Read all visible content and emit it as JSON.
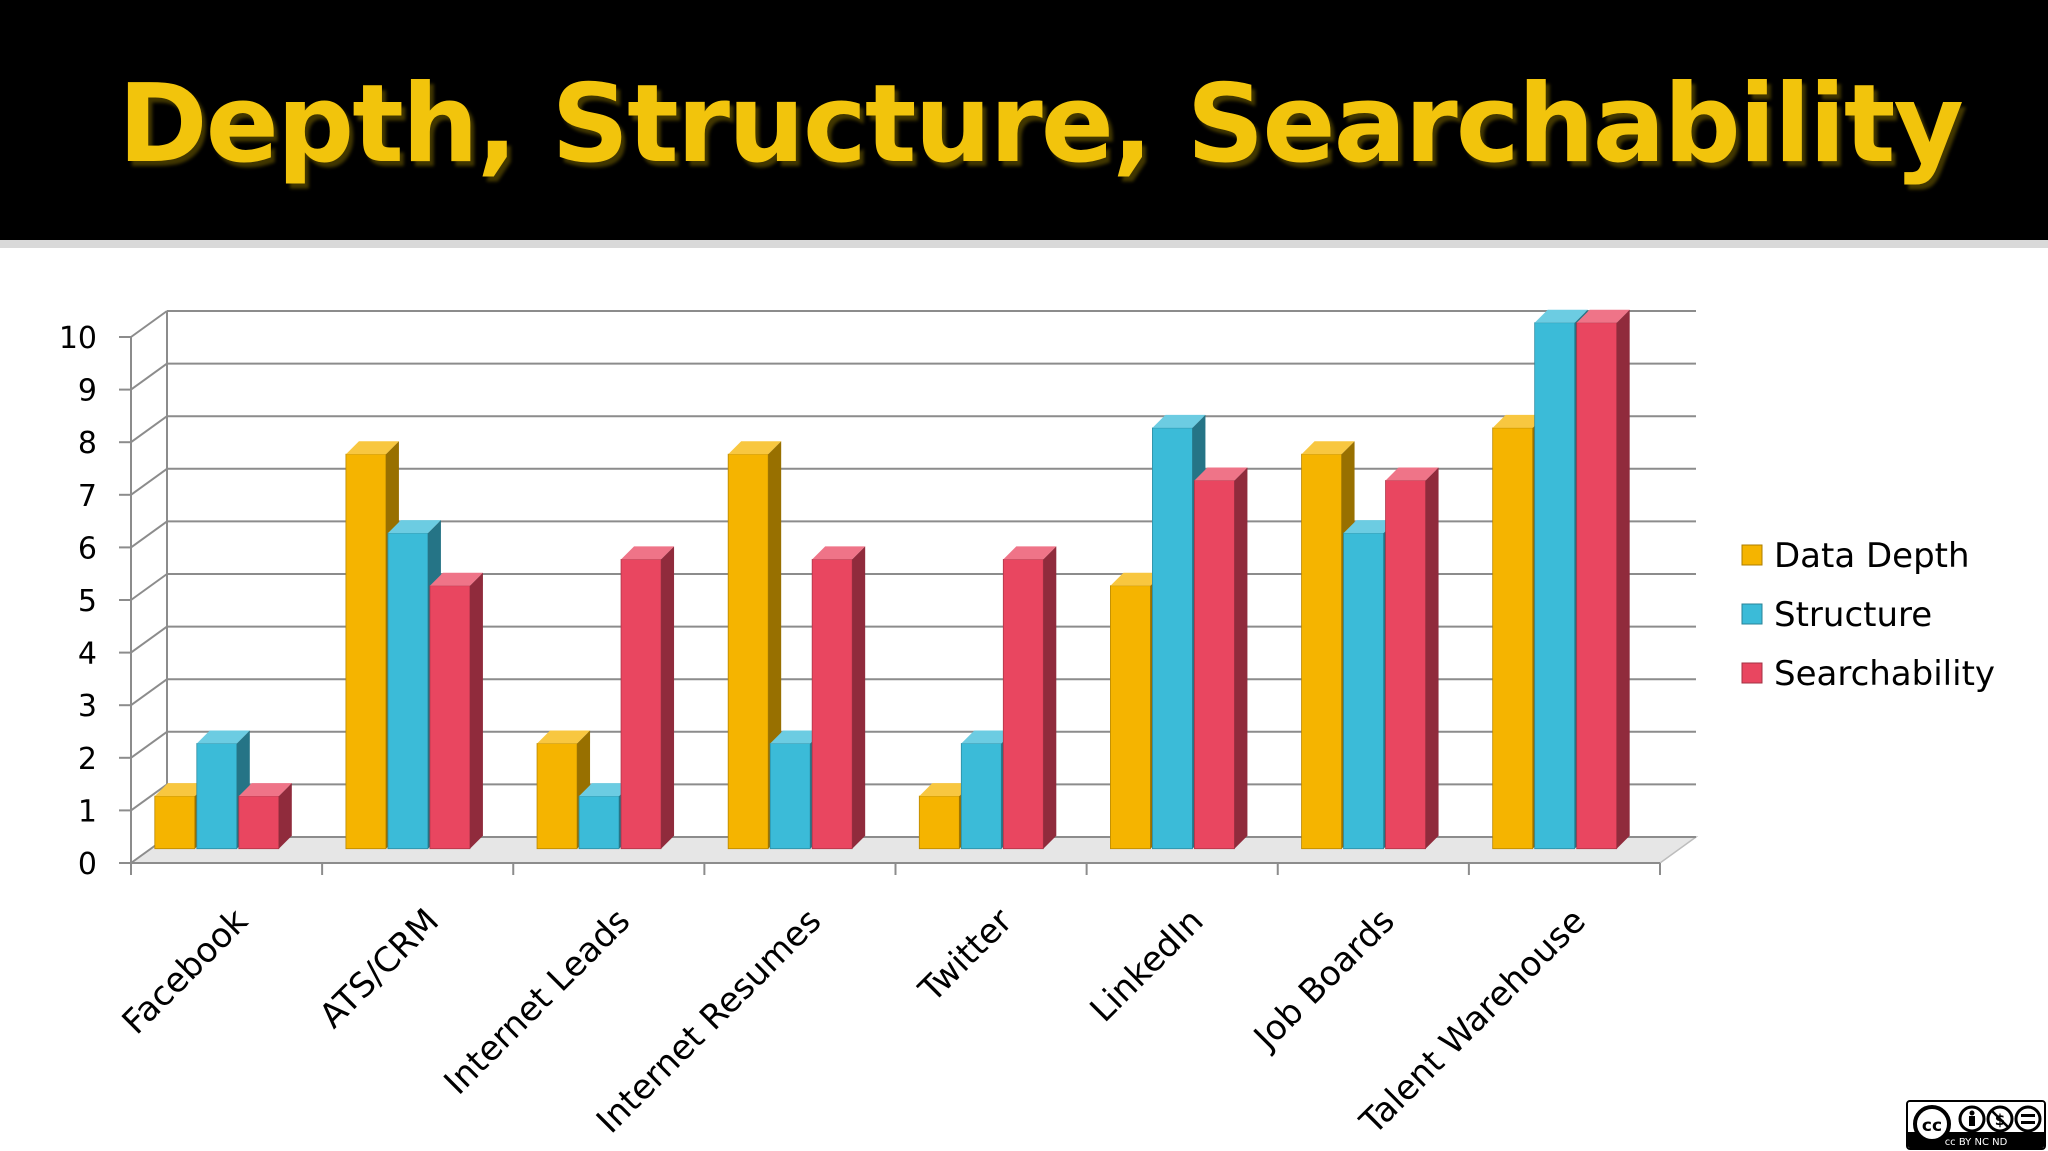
{
  "slide": {
    "title": "Depth, Structure, Searchability"
  },
  "colors": {
    "title": "#f2c40c",
    "background_title_bar": "#000000",
    "data_depth": "#f5b400",
    "structure": "#3bbbd8",
    "searchability": "#e94660"
  },
  "license_badge": {
    "text": "cc BY NC ND"
  },
  "chart_data": {
    "type": "bar",
    "categories": [
      "Facebook",
      "ATS/CRM",
      "Internet Leads",
      "Internet Resumes",
      "Twitter",
      "LinkedIn",
      "Job Boards",
      "Talent Warehouse"
    ],
    "series": [
      {
        "name": "Data Depth",
        "color": "#f5b400",
        "values": [
          1,
          7.5,
          2,
          7.5,
          1,
          5,
          7.5,
          8
        ]
      },
      {
        "name": "Structure",
        "color": "#3bbbd8",
        "values": [
          2,
          6,
          1,
          2,
          2,
          8,
          6,
          10
        ]
      },
      {
        "name": "Searchability",
        "color": "#e94660",
        "values": [
          1,
          5,
          5.5,
          5.5,
          5.5,
          7,
          7,
          10
        ]
      }
    ],
    "yticks": [
      "0",
      "1",
      "2",
      "3",
      "4",
      "5",
      "6",
      "7",
      "8",
      "9",
      "10"
    ],
    "ylim": [
      0,
      10
    ],
    "grid": true,
    "legend": "right",
    "title": "",
    "xlabel": "",
    "ylabel": ""
  }
}
